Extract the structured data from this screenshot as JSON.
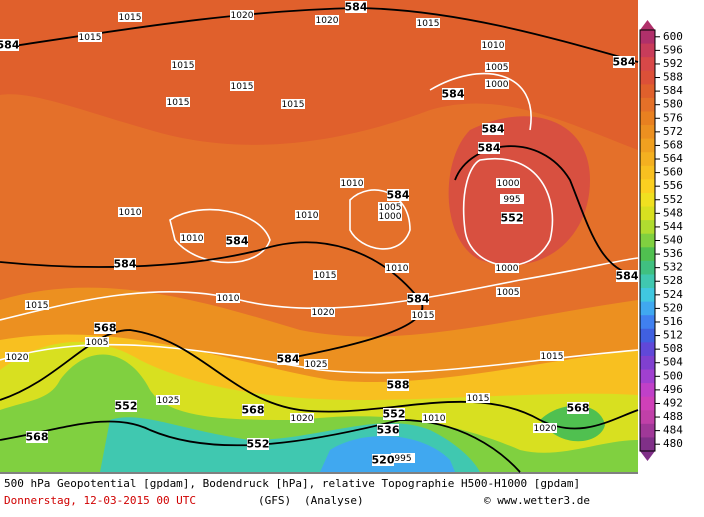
{
  "colorbar": {
    "labels": [
      600,
      596,
      592,
      588,
      584,
      580,
      576,
      572,
      568,
      564,
      560,
      556,
      552,
      548,
      544,
      540,
      536,
      532,
      528,
      524,
      520,
      516,
      512,
      508,
      504,
      500,
      496,
      492,
      488,
      484,
      480
    ],
    "colors": [
      "#b0306a",
      "#c83c5a",
      "#d84848",
      "#dc5038",
      "#e0602c",
      "#e47028",
      "#e88020",
      "#ec9020",
      "#f0a020",
      "#f4b020",
      "#f8c020",
      "#fcd020",
      "#f0e020",
      "#d8e020",
      "#b0dc30",
      "#80d040",
      "#50c050",
      "#40c080",
      "#40c8b0",
      "#40c8e0",
      "#40a8f0",
      "#4080f0",
      "#4060e0",
      "#6048d8",
      "#8040d0",
      "#a040d0",
      "#c040c8",
      "#d040b8",
      "#c040a8",
      "#a03898",
      "#803088"
    ]
  },
  "height_labels": [
    584,
    584,
    584,
    584,
    584,
    584,
    584,
    552,
    584,
    584,
    584,
    584,
    568,
    584,
    588,
    552,
    568,
    552,
    568,
    536,
    568,
    552,
    520
  ],
  "pressure_labels": [
    1015,
    1015,
    1020,
    1020,
    1015,
    1010,
    1005,
    1000,
    1015,
    1015,
    1015,
    1015,
    1010,
    1005,
    1000,
    1000,
    995,
    1010,
    1010,
    1010,
    1010,
    1000,
    1015,
    1005,
    1010,
    1015,
    1020,
    1015,
    1005,
    1020,
    1025,
    1015,
    1015,
    1025,
    1020,
    1010,
    1020,
    995
  ],
  "footer": {
    "description": "500 hPa Geopotential [gpdam], Bodendruck [hPa], relative Topographie H500-H1000 [gpdam]",
    "date": "Donnerstag, 12-03-2015  00 UTC",
    "model": "(GFS)",
    "run": "(Analyse)",
    "credit": "© www.wetter3.de"
  }
}
